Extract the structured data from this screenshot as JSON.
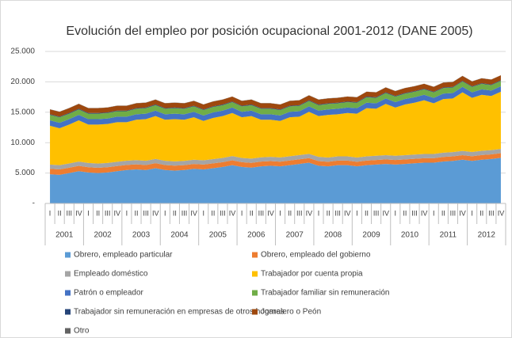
{
  "chart_data": {
    "type": "stacked_area",
    "title": "Evolución del empleo por posición ocupacional 2001-2012 (DANE 2005)",
    "categories": [
      "I",
      "II",
      "III",
      "IV",
      "I",
      "II",
      "III",
      "IV",
      "I",
      "II",
      "III",
      "IV",
      "I",
      "II",
      "III",
      "IV",
      "I",
      "II",
      "III",
      "IV",
      "I",
      "II",
      "III",
      "IV",
      "I",
      "II",
      "III",
      "IV",
      "I",
      "II",
      "III",
      "IV",
      "I",
      "II",
      "III",
      "IV",
      "I",
      "II",
      "III",
      "IV",
      "I",
      "II",
      "III",
      "IV",
      "I",
      "II",
      "III",
      "IV"
    ],
    "year_labels": [
      "2001",
      "2002",
      "2003",
      "2004",
      "2005",
      "2006",
      "2007",
      "2008",
      "2009",
      "2010",
      "2011",
      "2012"
    ],
    "ylim": [
      0,
      25000
    ],
    "yticks": [
      {
        "value": 0,
        "label": "-"
      },
      {
        "value": 5000,
        "label": "5.000"
      },
      {
        "value": 10000,
        "label": "10.000"
      },
      {
        "value": 15000,
        "label": "15.000"
      },
      {
        "value": 20000,
        "label": "20.000"
      },
      {
        "value": 25000,
        "label": "25.000"
      }
    ],
    "grid": true,
    "legend": "bottom",
    "series": [
      {
        "name": "Obrero, empleado particular",
        "color": "#5b9bd5",
        "values": [
          4800,
          4700,
          5000,
          5300,
          5100,
          5000,
          5100,
          5300,
          5500,
          5600,
          5500,
          5800,
          5500,
          5400,
          5500,
          5700,
          5600,
          5800,
          6000,
          6300,
          6000,
          5900,
          6100,
          6200,
          6100,
          6300,
          6500,
          6700,
          6200,
          6100,
          6300,
          6300,
          6100,
          6300,
          6400,
          6500,
          6400,
          6500,
          6600,
          6700,
          6700,
          6900,
          7000,
          7200,
          7000,
          7200,
          7300,
          7500
        ]
      },
      {
        "name": "Obrero, empleado del gobierno",
        "color": "#ed7d31",
        "values": [
          900,
          900,
          880,
          880,
          860,
          860,
          850,
          850,
          830,
          830,
          820,
          820,
          810,
          810,
          800,
          800,
          800,
          790,
          790,
          790,
          780,
          780,
          780,
          770,
          770,
          770,
          760,
          760,
          760,
          760,
          750,
          750,
          750,
          750,
          750,
          740,
          740,
          740,
          740,
          740,
          740,
          750,
          750,
          750,
          760,
          760,
          770,
          770
        ]
      },
      {
        "name": "Empleado doméstico",
        "color": "#a5a5a5",
        "values": [
          700,
          700,
          700,
          700,
          700,
          700,
          700,
          700,
          700,
          700,
          700,
          700,
          700,
          700,
          700,
          700,
          700,
          700,
          700,
          700,
          700,
          700,
          700,
          700,
          700,
          700,
          700,
          700,
          700,
          700,
          700,
          700,
          700,
          700,
          700,
          700,
          700,
          700,
          700,
          700,
          700,
          700,
          700,
          700,
          700,
          700,
          700,
          700
        ]
      },
      {
        "name": "Trabajador por cuenta propia",
        "color": "#ffc000",
        "values": [
          6370,
          6070,
          6390,
          6790,
          6310,
          6410,
          6420,
          6520,
          6340,
          6640,
          6850,
          7050,
          6760,
          6960,
          6770,
          6970,
          6470,
          6780,
          6880,
          7080,
          6690,
          6990,
          6190,
          6100,
          6000,
          6400,
          6310,
          6910,
          6710,
          7010,
          6920,
          7120,
          7220,
          7920,
          7720,
          8430,
          7930,
          8330,
          8530,
          8830,
          8330,
          8820,
          8820,
          9620,
          8910,
          9210,
          8900,
          9400
        ]
      },
      {
        "name": "Patrón o empleador",
        "color": "#4472c4",
        "values": [
          900,
          900,
          900,
          900,
          900,
          900,
          900,
          900,
          900,
          900,
          900,
          900,
          900,
          900,
          900,
          900,
          900,
          900,
          900,
          900,
          900,
          900,
          900,
          900,
          900,
          900,
          900,
          900,
          900,
          900,
          900,
          900,
          900,
          900,
          900,
          900,
          900,
          900,
          900,
          900,
          900,
          900,
          900,
          900,
          900,
          900,
          900,
          900
        ]
      },
      {
        "name": "Trabajador familiar sin remuneración",
        "color": "#70ad47",
        "values": [
          900,
          900,
          900,
          900,
          900,
          900,
          900,
          900,
          900,
          900,
          900,
          900,
          900,
          900,
          900,
          900,
          900,
          900,
          900,
          900,
          900,
          900,
          900,
          900,
          900,
          900,
          900,
          900,
          900,
          900,
          900,
          900,
          900,
          900,
          900,
          900,
          900,
          900,
          900,
          900,
          900,
          900,
          900,
          900,
          900,
          900,
          900,
          900
        ]
      },
      {
        "name": "Trabajador sin remuneración en empresas de otros hogares",
        "color": "#264478",
        "values": [
          100,
          100,
          100,
          100,
          100,
          100,
          100,
          100,
          100,
          100,
          100,
          100,
          100,
          100,
          100,
          100,
          100,
          100,
          100,
          100,
          100,
          100,
          100,
          100,
          100,
          100,
          100,
          100,
          100,
          100,
          100,
          100,
          100,
          100,
          100,
          100,
          100,
          100,
          100,
          100,
          100,
          100,
          100,
          100,
          100,
          100,
          100,
          100
        ]
      },
      {
        "name": "Jornalero o Peón",
        "color": "#9e480e",
        "values": [
          800,
          800,
          800,
          800,
          800,
          800,
          800,
          800,
          800,
          800,
          800,
          800,
          800,
          800,
          800,
          800,
          800,
          800,
          800,
          800,
          800,
          800,
          800,
          800,
          800,
          800,
          800,
          800,
          800,
          800,
          800,
          800,
          800,
          800,
          800,
          800,
          800,
          800,
          800,
          800,
          800,
          800,
          800,
          800,
          800,
          800,
          800,
          800
        ]
      },
      {
        "name": "Otro",
        "color": "#636363",
        "values": [
          30,
          30,
          30,
          30,
          30,
          30,
          30,
          30,
          30,
          30,
          30,
          30,
          30,
          30,
          30,
          30,
          30,
          30,
          30,
          30,
          30,
          30,
          30,
          30,
          30,
          30,
          30,
          30,
          30,
          30,
          30,
          30,
          30,
          30,
          30,
          30,
          30,
          30,
          30,
          30,
          30,
          30,
          30,
          30,
          30,
          30,
          30,
          30
        ]
      }
    ]
  }
}
